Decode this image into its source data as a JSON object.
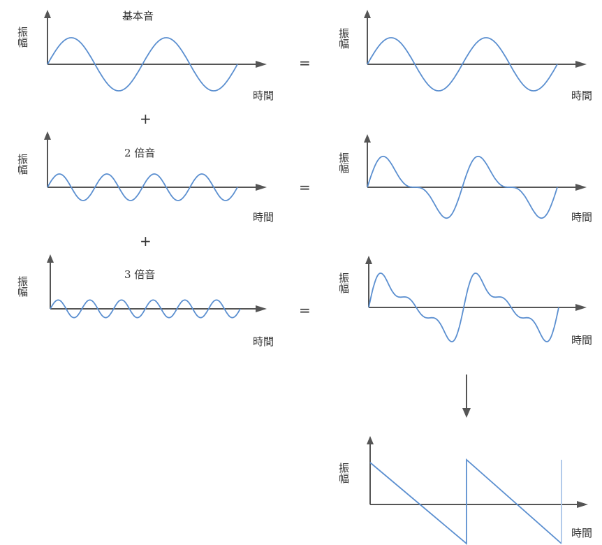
{
  "axis_amplitude": "振幅",
  "axis_time": "時間",
  "plus": "+",
  "equals": "=",
  "colors": {
    "wave": "#5b8fd0",
    "axis": "#555555",
    "text": "#333333"
  },
  "components": [
    {
      "title": "基本音",
      "harmonic": 1
    },
    {
      "title": "2 倍音",
      "harmonic": 2
    },
    {
      "title": "3 倍音",
      "harmonic": 3
    }
  ],
  "sums": [
    {
      "harmonics": [
        1
      ]
    },
    {
      "harmonics": [
        1,
        2
      ]
    },
    {
      "harmonics": [
        1,
        2,
        3
      ]
    }
  ],
  "result": {
    "shape": "sawtooth"
  },
  "down_arrow_icon": "arrow-down-icon"
}
